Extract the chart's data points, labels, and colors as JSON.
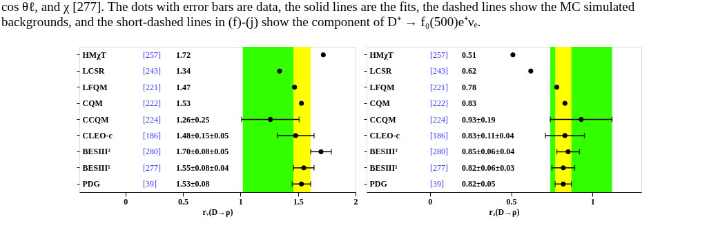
{
  "chart_data": [
    {
      "type": "scatter",
      "orientation": "horizontal",
      "annotations": [
        "cos θℓ, and χ [277]. The dots with error bars are data, the solid lines are the fits, the dashed lines show the MC simulated",
        "backgrounds, and the short-dashed lines in (f)-(j) show the component of D⁺ → f₀(500)e⁺νₑ.",
        "[257]",
        "[243]",
        "[221]",
        "[222]",
        "[224]",
        "[186]",
        "[280]",
        "[277]",
        "[39]",
        "1.72",
        "1.34",
        "1.47",
        "1.53",
        "1.26±0.25",
        "1.48±0.15±0.05",
        "1.70±0.08±0.05",
        "1.55±0.08±0.04",
        "1.53±0.08"
      ],
      "xlabel": "rᵥ(D→ρ)",
      "categories": [
        "HMχT",
        "LCSR",
        "LFQM",
        "CQM",
        "CCQM",
        "CLEO-c",
        "BESIII²",
        "BESIII¹",
        "PDG"
      ],
      "values": [
        1.72,
        1.34,
        1.47,
        1.53,
        1.26,
        1.48,
        1.7,
        1.55,
        1.53
      ],
      "errors": [
        null,
        null,
        null,
        null,
        0.25,
        0.16,
        0.09,
        0.09,
        0.08
      ],
      "color": "#000000",
      "marker": "circle",
      "xlim": [
        -0.4,
        2
      ],
      "xticks": [
        0,
        0.5,
        1,
        1.5,
        2
      ],
      "grid": false,
      "bands": [
        {
          "axis": "x",
          "from": 1.02,
          "to": 1.52,
          "color": "#33ff00"
        },
        {
          "axis": "x",
          "from": 1.46,
          "to": 1.61,
          "color": "#ffff00"
        }
      ]
    },
    {
      "type": "scatter",
      "orientation": "horizontal",
      "annotations": [
        "[257]",
        "[243]",
        "[221]",
        "[222]",
        "[224]",
        "[186]",
        "[280]",
        "[277]",
        "[39]",
        "0.51",
        "0.62",
        "0.78",
        "0.83",
        "0.93±0.19",
        "0.83±0.11±0.04",
        "0.85±0.06±0.04",
        "0.82±0.06±0.03",
        "0.82±0.05"
      ],
      "xlabel": "r₂(D→ρ)",
      "categories": [
        "HMχT",
        "LCSR",
        "LFQM",
        "CQM",
        "CCQM",
        "CLEO-c",
        "BESIII²",
        "BESIII¹",
        "PDG"
      ],
      "values": [
        0.51,
        0.62,
        0.78,
        0.83,
        0.93,
        0.83,
        0.85,
        0.82,
        0.82
      ],
      "errors": [
        null,
        null,
        null,
        null,
        0.19,
        0.12,
        0.07,
        0.07,
        0.05
      ],
      "color": "#000000",
      "marker": "circle",
      "xlim": [
        -0.39,
        1.3
      ],
      "xticks": [
        0,
        0.5,
        1
      ],
      "grid": false,
      "bands": [
        {
          "axis": "x",
          "from": 0.74,
          "to": 1.12,
          "color": "#33ff00"
        },
        {
          "axis": "x",
          "from": 0.77,
          "to": 0.87,
          "color": "#ffff00"
        }
      ]
    }
  ]
}
